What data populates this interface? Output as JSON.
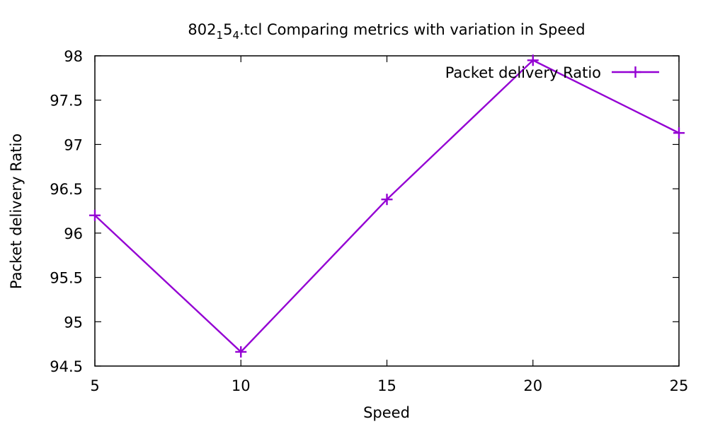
{
  "chart_data": {
    "type": "line",
    "title_parts": {
      "base": "802",
      "sub1": "1",
      "mid": "5",
      "sub2": "4",
      "rest": ".tcl Comparing metrics with variation in Speed"
    },
    "title": "802₁5₄.tcl Comparing metrics with variation in Speed",
    "xlabel": "Speed",
    "ylabel": "Packet delivery Ratio",
    "xlim": [
      5,
      25
    ],
    "ylim": [
      94.5,
      98
    ],
    "x_ticks": [
      5,
      10,
      15,
      20,
      25
    ],
    "x_tick_labels": [
      "5",
      "10",
      "15",
      "20",
      "25"
    ],
    "y_ticks": [
      94.5,
      95,
      95.5,
      96,
      96.5,
      97,
      97.5,
      98
    ],
    "y_tick_labels": [
      "94.5",
      "95",
      "95.5",
      "96",
      "96.5",
      "97",
      "97.5",
      "98"
    ],
    "grid": false,
    "legend_position": "top-right",
    "series": [
      {
        "name": "Packet delivery Ratio",
        "color": "#9400d3",
        "marker": "plus",
        "x": [
          5,
          10,
          15,
          20,
          25
        ],
        "y": [
          96.2,
          94.66,
          96.38,
          97.95,
          97.13
        ]
      }
    ]
  }
}
